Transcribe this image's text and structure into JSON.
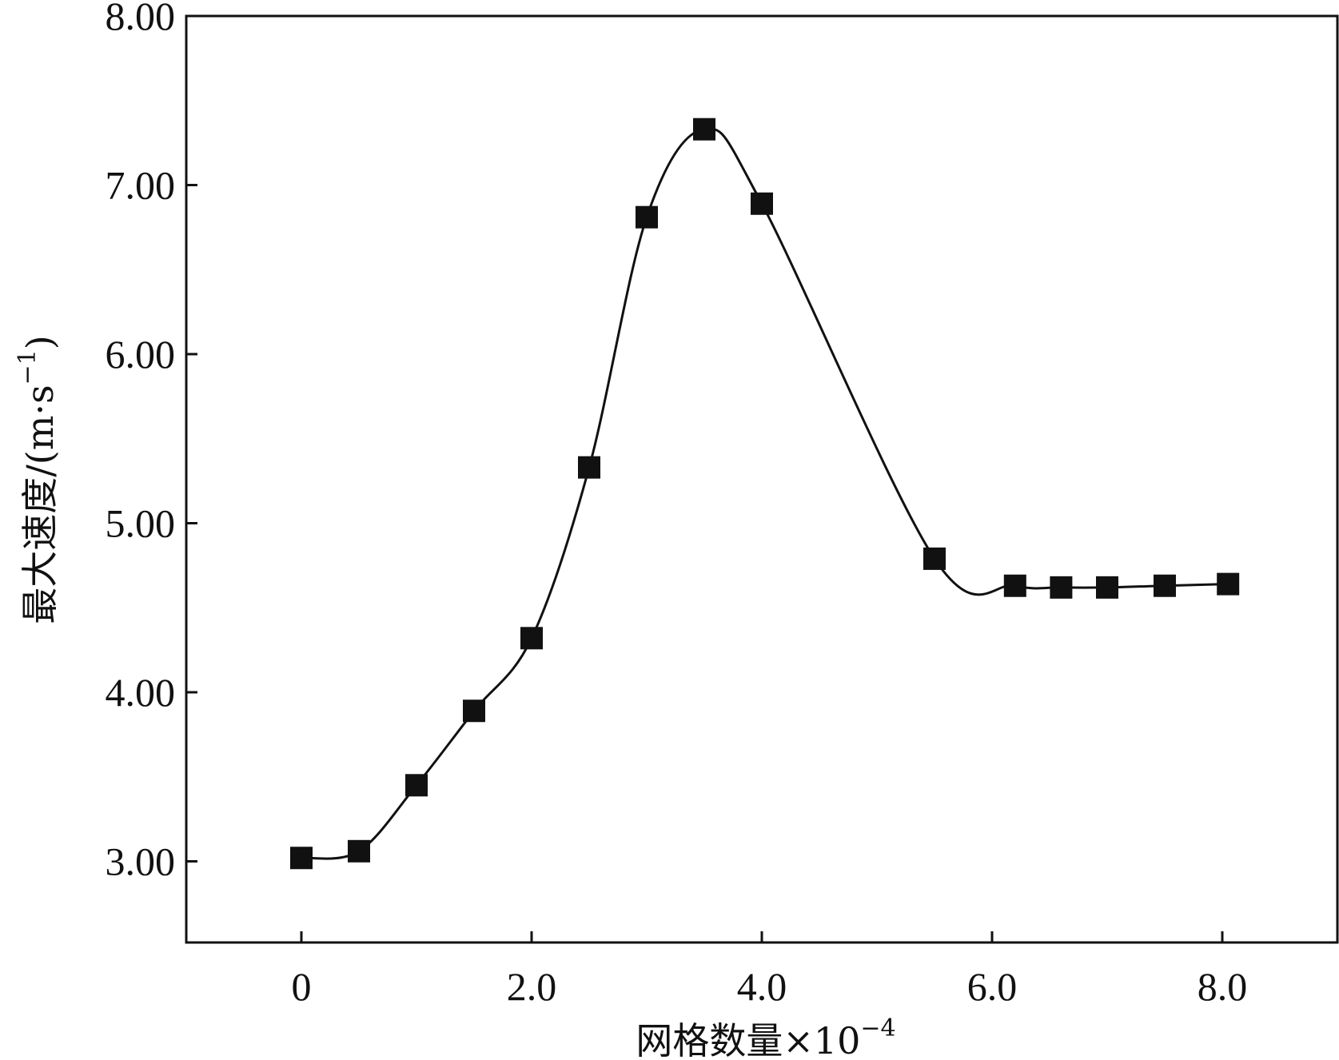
{
  "chart_data": {
    "type": "line",
    "xlabel": "网格数量×10",
    "xlabel_exponent": "−4",
    "ylabel": "最大速度/(m·s",
    "ylabel_exponent": "−1",
    "ylabel_close": ")",
    "xlim": [
      -1.0,
      9.0
    ],
    "ylim": [
      2.52,
      8.0
    ],
    "x_ticks": [
      {
        "value": 0,
        "label": "0"
      },
      {
        "value": 2.0,
        "label": "2.0"
      },
      {
        "value": 4.0,
        "label": "4.0"
      },
      {
        "value": 6.0,
        "label": "6.0"
      },
      {
        "value": 8.0,
        "label": "8.0"
      }
    ],
    "y_ticks": [
      {
        "value": 3.0,
        "label": "3.00"
      },
      {
        "value": 4.0,
        "label": "4.00"
      },
      {
        "value": 5.0,
        "label": "5.00"
      },
      {
        "value": 6.0,
        "label": "6.00"
      },
      {
        "value": 7.0,
        "label": "7.00"
      },
      {
        "value": 8.0,
        "label": "8.00"
      }
    ],
    "grid": false,
    "legend": "none",
    "marker": "square",
    "line": "smooth",
    "color": "#111111",
    "series": [
      {
        "x": [
          0.0,
          0.5,
          1.0,
          1.5,
          2.0,
          2.5,
          3.0,
          3.5,
          4.0,
          5.5,
          6.2,
          6.6,
          7.0,
          7.5,
          8.05
        ],
        "y": [
          3.02,
          3.06,
          3.45,
          3.89,
          4.32,
          5.33,
          6.81,
          7.33,
          6.89,
          4.79,
          4.63,
          4.62,
          4.62,
          4.63,
          4.64
        ]
      }
    ]
  }
}
